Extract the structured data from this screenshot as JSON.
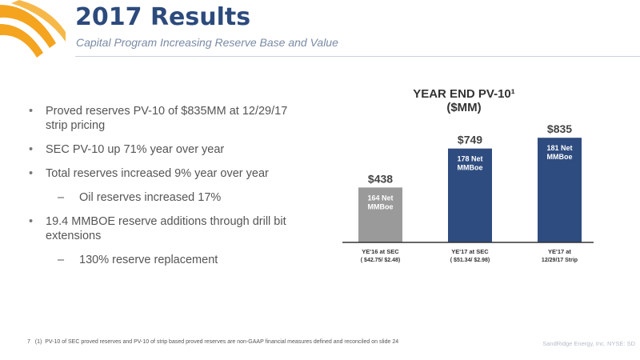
{
  "header": {
    "title": "2017 Results",
    "subtitle": "Capital Program Increasing Reserve Base and Value"
  },
  "bullets": [
    {
      "level": 1,
      "text": "Proved reserves PV-10 of $835MM at 12/29/17 strip pricing"
    },
    {
      "level": 1,
      "text": "SEC PV-10 up 71% year over year"
    },
    {
      "level": 1,
      "text": "Total reserves increased 9% year over year"
    },
    {
      "level": 2,
      "text": "Oil reserves increased 17%"
    },
    {
      "level": 1,
      "text": "19.4 MMBOE reserve additions through drill bit extensions"
    },
    {
      "level": 2,
      "text": "130% reserve replacement"
    }
  ],
  "chart_title": {
    "line1": "YEAR END PV-10¹",
    "line2": "($MM)"
  },
  "chart_data": {
    "type": "bar",
    "title": "YEAR END PV-10¹ ($MM)",
    "categories": [
      {
        "line1": "YE'16 at SEC",
        "line2": "( $42.75/ $2.48)"
      },
      {
        "line1": "YE'17 at SEC",
        "line2": "( $51.34/ $2.98)"
      },
      {
        "line1": "YE'17 at",
        "line2": "12/29/17 Strip"
      }
    ],
    "values": [
      438,
      749,
      835
    ],
    "value_labels": [
      "$438",
      "$749",
      "$835"
    ],
    "inner_labels": [
      {
        "line1": "164 Net",
        "line2": "MMBoe"
      },
      {
        "line1": "178 Net",
        "line2": "MMBoe"
      },
      {
        "line1": "181 Net",
        "line2": "MMBoe"
      }
    ],
    "colors": [
      "#9a9a9a",
      "#2f4c80",
      "#2f4c80"
    ],
    "ylim": [
      0,
      900
    ],
    "grid": false
  },
  "footer": {
    "page": "7",
    "footnote_marker": "(1)",
    "footnote": "PV-10 of SEC proved reserves and PV-10 of strip based proved reserves are non-GAAP financial measures defined and reconciled on slide 24",
    "company": "SandRidge Energy, Inc. NYSE: SD"
  },
  "logo": {
    "icon": "sandridge-logo-arc-icon",
    "colors": [
      "#f4a41e",
      "#2c4a7c"
    ]
  }
}
